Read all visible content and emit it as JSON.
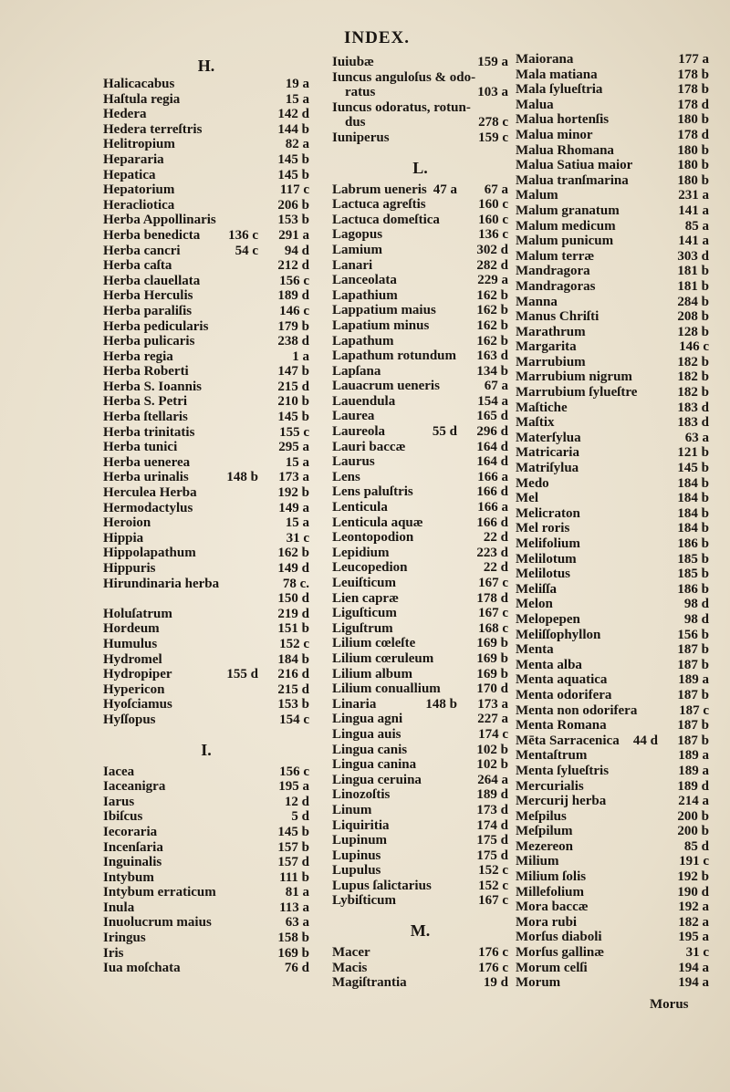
{
  "header": {
    "title": "INDEX."
  },
  "columns": [
    {
      "items": [
        {
          "heading": "H."
        },
        {
          "name": "Halicacabus",
          "ref": "19 a"
        },
        {
          "name": "Haſtula regia",
          "ref": "15 a"
        },
        {
          "name": "Hedera",
          "ref": "142 d"
        },
        {
          "name": "Hedera terreſtris",
          "ref": "144 b"
        },
        {
          "name": "Helitropium",
          "ref": "82 a"
        },
        {
          "name": "Hepararia",
          "ref": "145 b"
        },
        {
          "name": "Hepatica",
          "ref": "145 b"
        },
        {
          "name": "Hepatorium",
          "ref": "117 c"
        },
        {
          "name": "Heracliotica",
          "ref": "206 b"
        },
        {
          "name": "Herba Appollinaris",
          "ref": "153 b"
        },
        {
          "name": "Herba benedicta",
          "extra": "136 c",
          "ref": "291 a"
        },
        {
          "name": "Herba cancri",
          "extra": "54 c",
          "ref": "94 d"
        },
        {
          "name": "Herba caſta",
          "ref": "212 d"
        },
        {
          "name": "Herba clauellata",
          "ref": "156 c"
        },
        {
          "name": "Herba Herculis",
          "ref": "189 d"
        },
        {
          "name": "Herba paraliſis",
          "ref": "146 c"
        },
        {
          "name": "Herba pedicularis",
          "ref": "179 b"
        },
        {
          "name": "Herba pulicaris",
          "ref": "238 d"
        },
        {
          "name": "Herba regia",
          "ref": "1 a"
        },
        {
          "name": "Herba Roberti",
          "ref": "147 b"
        },
        {
          "name": "Herba S. Ioannis",
          "ref": "215 d"
        },
        {
          "name": "Herba S. Petri",
          "ref": "210 b"
        },
        {
          "name": "Herba ſtellaris",
          "ref": "145 b"
        },
        {
          "name": "Herba trinitatis",
          "ref": "155 c"
        },
        {
          "name": "Herba tunici",
          "ref": "295 a"
        },
        {
          "name": "Herba uenerea",
          "ref": "15 a"
        },
        {
          "name": "Herba urinalis",
          "extra": "148 b",
          "ref": "173 a"
        },
        {
          "name": "Herculea Herba",
          "ref": "192 b"
        },
        {
          "name": "Hermodactylus",
          "ref": "149 a"
        },
        {
          "name": "Heroion",
          "ref": "15 a"
        },
        {
          "name": "Hippia",
          "ref": "31 c"
        },
        {
          "name": "Hippolapathum",
          "ref": "162 b"
        },
        {
          "name": "Hippuris",
          "ref": "149 d"
        },
        {
          "name": "Hirundinaria herba",
          "ref": "78 c."
        },
        {
          "name": "",
          "ref": "150 d"
        },
        {
          "name": "Holuſatrum",
          "ref": "219 d"
        },
        {
          "name": "Hordeum",
          "ref": "151 b"
        },
        {
          "name": "Humulus",
          "ref": "152 c"
        },
        {
          "name": "Hydromel",
          "ref": "184 b"
        },
        {
          "name": "Hydropiper",
          "extra": "155 d",
          "ref": "216 d"
        },
        {
          "name": "Hypericon",
          "ref": "215 d"
        },
        {
          "name": "Hyoſciamus",
          "ref": "153 b"
        },
        {
          "name": "Hyſſopus",
          "ref": "154 c"
        },
        {
          "heading": "I."
        },
        {
          "name": "Iacea",
          "ref": "156 c"
        },
        {
          "name": "Iaceanigra",
          "ref": "195 a"
        },
        {
          "name": "Iarus",
          "ref": "12 d"
        },
        {
          "name": "Ibiſcus",
          "ref": "5 d"
        },
        {
          "name": "Iecoraria",
          "ref": "145 b"
        },
        {
          "name": "Incenſaria",
          "ref": "157 b"
        },
        {
          "name": "Inguinalis",
          "ref": "157 d"
        },
        {
          "name": "Intybum",
          "ref": "111 b"
        },
        {
          "name": "Intybum erraticum",
          "ref": "81 a"
        },
        {
          "name": "Inula",
          "ref": "113 a"
        },
        {
          "name": "Inuolucrum maius",
          "ref": "63 a"
        },
        {
          "name": "Iringus",
          "ref": "158 b"
        },
        {
          "name": "Iris",
          "ref": "169 b"
        },
        {
          "name": "Iua moſchata",
          "ref": "76 d"
        }
      ]
    },
    {
      "items": [
        {
          "name": "Iuiubæ",
          "ref": "159 a"
        },
        {
          "name": "Iuncus anguloſus & odo-",
          "ref": ""
        },
        {
          "name": "ratus",
          "ref": "103 a",
          "cont": true
        },
        {
          "name": "Iuncus odoratus, rotun-",
          "ref": ""
        },
        {
          "name": "dus",
          "ref": "278 c",
          "cont": true
        },
        {
          "name": "Iuniperus",
          "ref": "159 c"
        },
        {
          "heading": "L."
        },
        {
          "name": "Labrum ueneris",
          "extra": "47 a",
          "ref": "67 a"
        },
        {
          "name": "Lactuca agreſtis",
          "ref": "160 c"
        },
        {
          "name": "Lactuca domeſtica",
          "ref": "160 c"
        },
        {
          "name": "Lagopus",
          "ref": "136 c"
        },
        {
          "name": "Lamium",
          "ref": "302 d"
        },
        {
          "name": "Lanari",
          "ref": "282 d"
        },
        {
          "name": "Lanceolata",
          "ref": "229 a"
        },
        {
          "name": "Lapathium",
          "ref": "162 b"
        },
        {
          "name": "Lappatium maius",
          "ref": "162 b"
        },
        {
          "name": "Lapatium minus",
          "ref": "162 b"
        },
        {
          "name": "Lapathum",
          "ref": "162 b"
        },
        {
          "name": "Lapathum rotundum",
          "ref": "163 d"
        },
        {
          "name": "Lapſana",
          "ref": "134 b"
        },
        {
          "name": "Lauacrum ueneris",
          "ref": "67 a"
        },
        {
          "name": "Lauendula",
          "ref": "154 a"
        },
        {
          "name": "Laurea",
          "ref": "165 d"
        },
        {
          "name": "Laureola",
          "extra": "55 d",
          "ref": "296 d"
        },
        {
          "name": "Lauri baccæ",
          "ref": "164 d"
        },
        {
          "name": "Laurus",
          "ref": "164 d"
        },
        {
          "name": "Lens",
          "ref": "166 a"
        },
        {
          "name": "Lens paluſtris",
          "ref": "166 d"
        },
        {
          "name": "Lenticula",
          "ref": "166 a"
        },
        {
          "name": "Lenticula aquæ",
          "ref": "166 d"
        },
        {
          "name": "Leontopodion",
          "ref": "22 d"
        },
        {
          "name": "Lepidium",
          "ref": "223 d"
        },
        {
          "name": "Leucopedion",
          "ref": "22 d"
        },
        {
          "name": "Leuiſticum",
          "ref": "167 c"
        },
        {
          "name": "Lien capræ",
          "ref": "178 d"
        },
        {
          "name": "Liguſticum",
          "ref": "167 c"
        },
        {
          "name": "Liguſtrum",
          "ref": "168 c"
        },
        {
          "name": "Lilium cœleſte",
          "ref": "169 b"
        },
        {
          "name": "Lilium cœruleum",
          "ref": "169 b"
        },
        {
          "name": "Lilium album",
          "ref": "169 b"
        },
        {
          "name": "Lilium conuallium",
          "ref": "170 d"
        },
        {
          "name": "Linaria",
          "extra": "148 b",
          "ref": "173 a"
        },
        {
          "name": "Lingua agni",
          "ref": "227 a"
        },
        {
          "name": "Lingua auis",
          "ref": "174 c"
        },
        {
          "name": "Lingua canis",
          "ref": "102 b"
        },
        {
          "name": "Lingua canina",
          "ref": "102 b"
        },
        {
          "name": "Lingua ceruina",
          "ref": "264 a"
        },
        {
          "name": "Linozoſtis",
          "ref": "189 d"
        },
        {
          "name": "Linum",
          "ref": "173 d"
        },
        {
          "name": "Liquiritia",
          "ref": "174 d"
        },
        {
          "name": "Lupinum",
          "ref": "175 d"
        },
        {
          "name": "Lupinus",
          "ref": "175 d"
        },
        {
          "name": "Lupulus",
          "ref": "152 c"
        },
        {
          "name": "Lupus ſalictarius",
          "ref": "152 c"
        },
        {
          "name": "Lybiſticum",
          "ref": "167 c"
        },
        {
          "heading": "M."
        },
        {
          "name": "Macer",
          "ref": "176 c"
        },
        {
          "name": "Macis",
          "ref": "176 c"
        },
        {
          "name": "Magiſtrantia",
          "ref": "19 d"
        }
      ]
    },
    {
      "items": [
        {
          "name": "Maiorana",
          "ref": "177 a"
        },
        {
          "name": "Mala matiana",
          "ref": "178 b"
        },
        {
          "name": "Mala ſylueſtria",
          "ref": "178 b"
        },
        {
          "name": "Malua",
          "ref": "178 d"
        },
        {
          "name": "Malua hortenſis",
          "ref": "180 b"
        },
        {
          "name": "Malua minor",
          "ref": "178 d"
        },
        {
          "name": "Malua Rhomana",
          "ref": "180 b"
        },
        {
          "name": "Malua Satiua maior",
          "ref": "180 b"
        },
        {
          "name": "Malua tranſmarina",
          "ref": "180 b"
        },
        {
          "name": "Malum",
          "ref": "231 a"
        },
        {
          "name": "Malum granatum",
          "ref": "141 a"
        },
        {
          "name": "Malum medicum",
          "ref": "85 a"
        },
        {
          "name": "Malum punicum",
          "ref": "141 a"
        },
        {
          "name": "Malum terræ",
          "ref": "303 d"
        },
        {
          "name": "Mandragora",
          "ref": "181 b"
        },
        {
          "name": "Mandragoras",
          "ref": "181 b"
        },
        {
          "name": "Manna",
          "ref": "284 b"
        },
        {
          "name": "Manus Chriſti",
          "ref": "208 b"
        },
        {
          "name": "Marathrum",
          "ref": "128 b"
        },
        {
          "name": "Margarita",
          "ref": "146 c"
        },
        {
          "name": "Marrubium",
          "ref": "182 b"
        },
        {
          "name": "Marrubium nigrum",
          "ref": "182 b"
        },
        {
          "name": "Marrubium ſylueſtre",
          "ref": "182 b"
        },
        {
          "name": "Maſtiche",
          "ref": "183 d"
        },
        {
          "name": "Maſtix",
          "ref": "183 d"
        },
        {
          "name": "Materſylua",
          "ref": "63 a"
        },
        {
          "name": "Matricaria",
          "ref": "121 b"
        },
        {
          "name": "Matriſylua",
          "ref": "145 b"
        },
        {
          "name": "Medo",
          "ref": "184 b"
        },
        {
          "name": "Mel",
          "ref": "184 b"
        },
        {
          "name": "Melicraton",
          "ref": "184 b"
        },
        {
          "name": "Mel roris",
          "ref": "184 b"
        },
        {
          "name": "Melifolium",
          "ref": "186 b"
        },
        {
          "name": "Melilotum",
          "ref": "185 b"
        },
        {
          "name": "Melilotus",
          "ref": "185 b"
        },
        {
          "name": "Meliſſa",
          "ref": "186 b"
        },
        {
          "name": "Melon",
          "ref": "98 d"
        },
        {
          "name": "Melopepen",
          "ref": "98 d"
        },
        {
          "name": "Meliſſophyllon",
          "ref": "156 b"
        },
        {
          "name": "Menta",
          "ref": "187 b"
        },
        {
          "name": "Menta alba",
          "ref": "187 b"
        },
        {
          "name": "Menta aquatica",
          "ref": "189 a"
        },
        {
          "name": "Menta odorifera",
          "ref": "187 b"
        },
        {
          "name": "Menta non odorifera",
          "ref": "187 c"
        },
        {
          "name": "Menta Romana",
          "ref": "187 b"
        },
        {
          "name": "Mēta Sarracenica",
          "extra": "44 d",
          "ref": "187 b"
        },
        {
          "name": "Mentaſtrum",
          "ref": "189 a"
        },
        {
          "name": "Menta ſylueſtris",
          "ref": "189 a"
        },
        {
          "name": "Mercurialis",
          "ref": "189 d"
        },
        {
          "name": "Mercurij herba",
          "ref": "214 a"
        },
        {
          "name": "Meſpilus",
          "ref": "200 b"
        },
        {
          "name": "Meſpilum",
          "ref": "200 b"
        },
        {
          "name": "Mezereon",
          "ref": "85 d"
        },
        {
          "name": "Milium",
          "ref": "191 c"
        },
        {
          "name": "Milium ſolis",
          "ref": "192 b"
        },
        {
          "name": "Millefolium",
          "ref": "190 d"
        },
        {
          "name": "Mora baccæ",
          "ref": "192 a"
        },
        {
          "name": "Mora rubi",
          "ref": "182 a"
        },
        {
          "name": "Morſus diaboli",
          "ref": "195 a"
        },
        {
          "name": "Morſus gallinæ",
          "ref": "31 c"
        },
        {
          "name": "Morum celſi",
          "ref": "194 a"
        },
        {
          "name": "Morum",
          "ref": "194 a"
        }
      ]
    }
  ],
  "catchword": "Morus"
}
